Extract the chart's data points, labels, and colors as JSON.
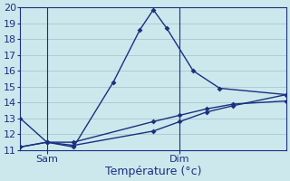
{
  "background_color": "#cde8ed",
  "grid_color": "#aacdd4",
  "line_color": "#1a3080",
  "xlabel": "Température (°c)",
  "xlabel_fontsize": 9,
  "tick_fontsize": 8,
  "ylim": [
    11,
    20
  ],
  "yticks": [
    11,
    12,
    13,
    14,
    15,
    16,
    17,
    18,
    19,
    20
  ],
  "xlim": [
    0,
    10
  ],
  "sam_x": 1.0,
  "dim_x": 6.0,
  "series1_x": [
    0.0,
    1.0,
    2.0,
    3.5,
    4.5,
    5.0,
    5.5,
    6.5,
    7.5,
    10.0
  ],
  "series1_y": [
    13.0,
    11.5,
    11.2,
    15.3,
    18.6,
    19.85,
    18.7,
    16.0,
    14.9,
    14.5
  ],
  "series2_x": [
    0.0,
    1.0,
    2.0,
    5.0,
    6.0,
    7.0,
    8.0,
    10.0
  ],
  "series2_y": [
    11.2,
    11.5,
    11.5,
    12.8,
    13.2,
    13.6,
    13.9,
    14.1
  ],
  "series3_x": [
    0.0,
    1.0,
    2.0,
    5.0,
    6.0,
    7.0,
    8.0,
    10.0
  ],
  "series3_y": [
    11.2,
    11.5,
    11.3,
    12.2,
    12.8,
    13.4,
    13.8,
    14.5
  ]
}
